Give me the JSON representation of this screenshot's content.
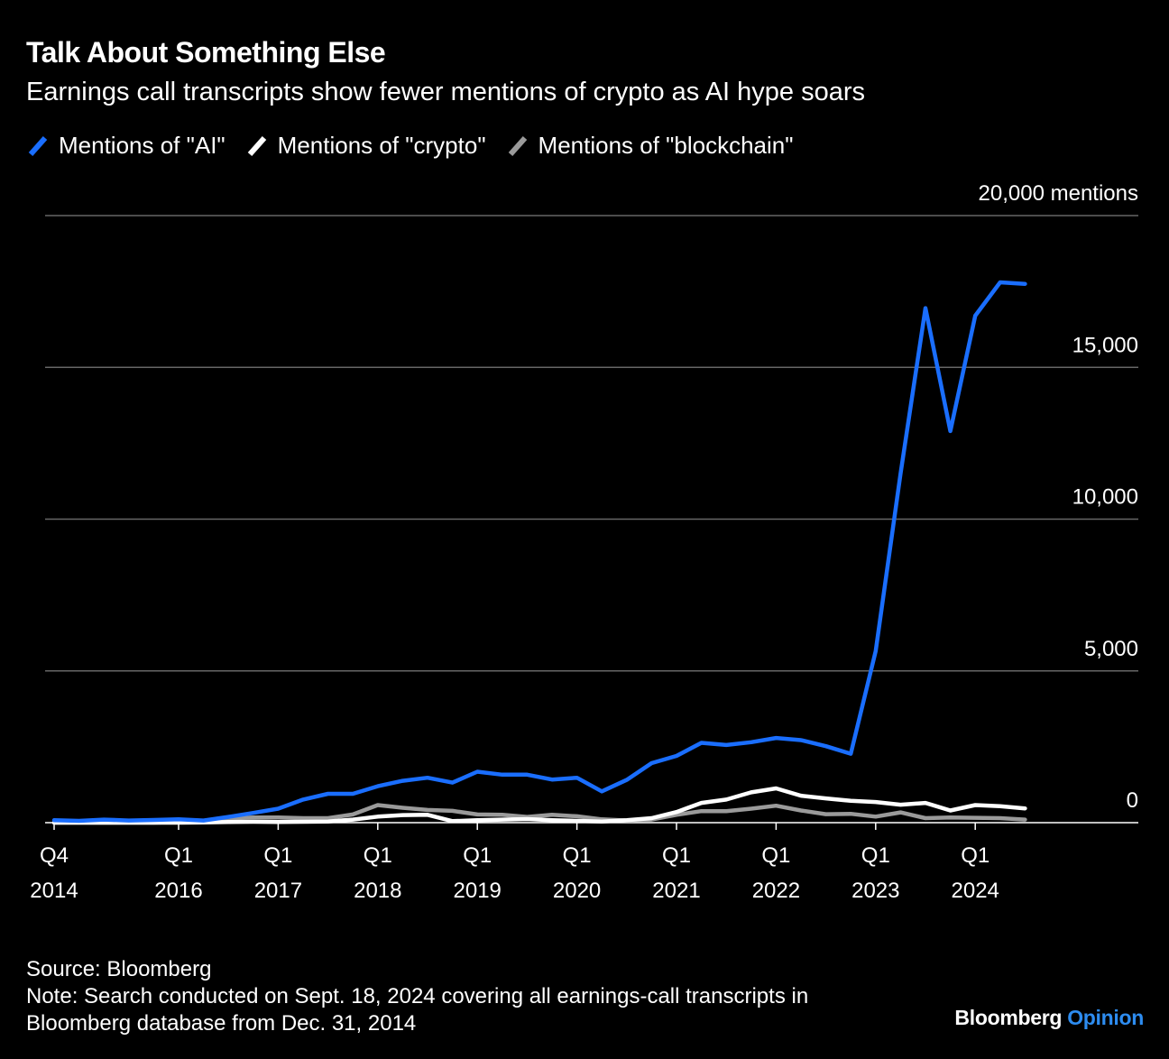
{
  "title": "Talk About Something Else",
  "subtitle": "Earnings call transcripts show fewer mentions of crypto as AI hype soars",
  "legend": [
    {
      "label": "Mentions of \"AI\"",
      "color": "#1a6eff"
    },
    {
      "label": "Mentions of \"crypto\"",
      "color": "#ffffff"
    },
    {
      "label": "Mentions of \"blockchain\"",
      "color": "#9a9a9a"
    }
  ],
  "footer": {
    "source": "Source: Bloomberg",
    "note_line1": "Note: Search conducted on Sept. 18, 2024 covering all earnings-call transcripts in",
    "note_line2": "Bloomberg database from Dec. 31, 2014"
  },
  "brand": {
    "main": "Bloomberg",
    "sub": "Opinion"
  },
  "chart_data": {
    "type": "line",
    "ylim": [
      0,
      20000
    ],
    "y_ticks": [
      {
        "value": 20000,
        "label": "20,000 mentions"
      },
      {
        "value": 15000,
        "label": "15,000"
      },
      {
        "value": 10000,
        "label": "10,000"
      },
      {
        "value": 5000,
        "label": "5,000"
      },
      {
        "value": 0,
        "label": "0"
      }
    ],
    "x_ticks": [
      {
        "quarter": "2014 Q4",
        "line1": "Q4",
        "line2": "2014"
      },
      {
        "quarter": "2016 Q1",
        "line1": "Q1",
        "line2": "2016"
      },
      {
        "quarter": "2017 Q1",
        "line1": "Q1",
        "line2": "2017"
      },
      {
        "quarter": "2018 Q1",
        "line1": "Q1",
        "line2": "2018"
      },
      {
        "quarter": "2019 Q1",
        "line1": "Q1",
        "line2": "2019"
      },
      {
        "quarter": "2020 Q1",
        "line1": "Q1",
        "line2": "2020"
      },
      {
        "quarter": "2021 Q1",
        "line1": "Q1",
        "line2": "2021"
      },
      {
        "quarter": "2022 Q1",
        "line1": "Q1",
        "line2": "2022"
      },
      {
        "quarter": "2023 Q1",
        "line1": "Q1",
        "line2": "2023"
      },
      {
        "quarter": "2024 Q1",
        "line1": "Q1",
        "line2": "2024"
      }
    ],
    "x": [
      "2014 Q4",
      "2015 Q1",
      "2015 Q2",
      "2015 Q3",
      "2015 Q4",
      "2016 Q1",
      "2016 Q2",
      "2016 Q3",
      "2016 Q4",
      "2017 Q1",
      "2017 Q2",
      "2017 Q3",
      "2017 Q4",
      "2018 Q1",
      "2018 Q2",
      "2018 Q3",
      "2018 Q4",
      "2019 Q1",
      "2019 Q2",
      "2019 Q3",
      "2019 Q4",
      "2020 Q1",
      "2020 Q2",
      "2020 Q3",
      "2020 Q4",
      "2021 Q1",
      "2021 Q2",
      "2021 Q3",
      "2021 Q4",
      "2022 Q1",
      "2022 Q2",
      "2022 Q3",
      "2022 Q4",
      "2023 Q1",
      "2023 Q2",
      "2023 Q3",
      "2023 Q4",
      "2024 Q1",
      "2024 Q2",
      "2024 Q3"
    ],
    "series": [
      {
        "name": "Mentions of \"AI\"",
        "color": "#1a6eff",
        "values": [
          80,
          60,
          100,
          70,
          90,
          110,
          70,
          190,
          320,
          460,
          760,
          950,
          950,
          1200,
          1380,
          1480,
          1320,
          1680,
          1580,
          1580,
          1420,
          1480,
          1030,
          1410,
          1960,
          2200,
          2630,
          2560,
          2650,
          2790,
          2720,
          2520,
          2270,
          5650,
          11500,
          16950,
          12900,
          16700,
          17800,
          17750
        ]
      },
      {
        "name": "Mentions of \"crypto\"",
        "color": "#ffffff",
        "values": [
          0,
          0,
          0,
          0,
          0,
          0,
          10,
          20,
          30,
          20,
          30,
          40,
          100,
          200,
          250,
          260,
          50,
          80,
          100,
          120,
          80,
          60,
          40,
          80,
          150,
          350,
          650,
          760,
          1000,
          1130,
          890,
          800,
          720,
          680,
          590,
          650,
          400,
          580,
          540,
          470
        ]
      },
      {
        "name": "Mentions of \"blockchain\"",
        "color": "#9a9a9a",
        "values": [
          0,
          0,
          0,
          0,
          0,
          20,
          50,
          140,
          170,
          170,
          150,
          150,
          270,
          580,
          490,
          420,
          390,
          270,
          260,
          190,
          260,
          210,
          110,
          70,
          100,
          260,
          380,
          380,
          460,
          560,
          400,
          280,
          290,
          200,
          340,
          150,
          170,
          160,
          150,
          100
        ]
      }
    ]
  }
}
